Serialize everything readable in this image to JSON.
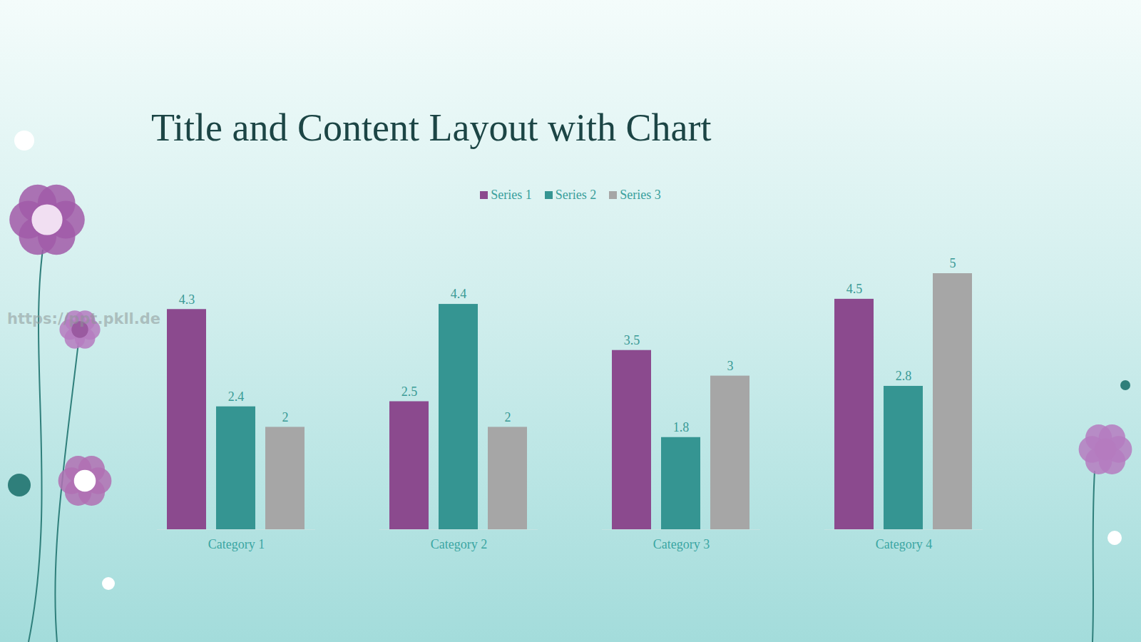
{
  "chart_data": {
    "type": "bar",
    "title": "Title and Content Layout with Chart",
    "categories": [
      "Category 1",
      "Category 2",
      "Category 3",
      "Category 4"
    ],
    "series": [
      {
        "name": "Series 1",
        "color": "#8b4a8e",
        "values": [
          4.3,
          2.5,
          3.5,
          4.5
        ]
      },
      {
        "name": "Series 2",
        "color": "#359592",
        "values": [
          2.4,
          4.4,
          1.8,
          2.8
        ]
      },
      {
        "name": "Series 3",
        "color": "#a6a6a6",
        "values": [
          2,
          2,
          3,
          5
        ]
      }
    ],
    "ylim": [
      0,
      5
    ],
    "grid": false,
    "legend": "top",
    "data_labels": true,
    "tick_labels": "x",
    "annotations": [
      "https://ppt.pkll.de"
    ]
  }
}
